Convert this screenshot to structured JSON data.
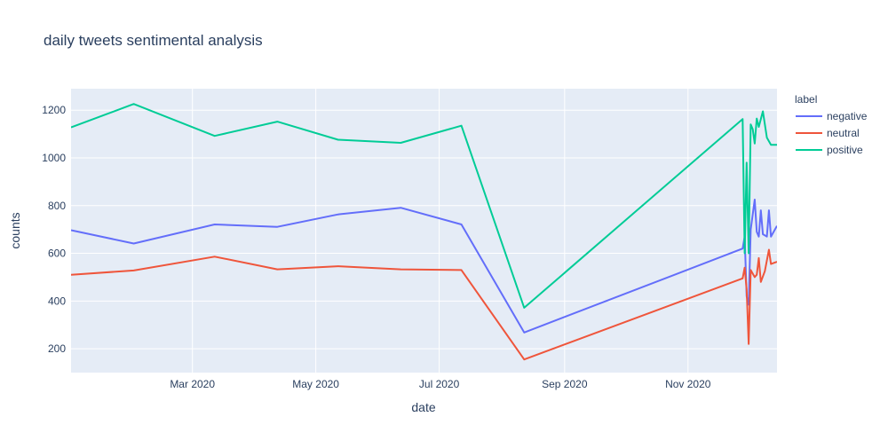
{
  "chart_data": {
    "type": "line",
    "title": "daily tweets sentimental analysis",
    "xlabel": "date",
    "ylabel": "counts",
    "x_axis_type": "date",
    "xlim": [
      "2020-01-01",
      "2020-12-15"
    ],
    "ylim": [
      100,
      1290
    ],
    "x_ticks": [
      {
        "value": "2020-03-01",
        "label": "Mar 2020"
      },
      {
        "value": "2020-05-01",
        "label": "May 2020"
      },
      {
        "value": "2020-07-01",
        "label": "Jul 2020"
      },
      {
        "value": "2020-09-01",
        "label": "Sep 2020"
      },
      {
        "value": "2020-11-01",
        "label": "Nov 2020"
      }
    ],
    "y_ticks": [
      200,
      400,
      600,
      800,
      1000,
      1200
    ],
    "grid": true,
    "legend": {
      "title": "label",
      "placement": "right"
    },
    "series": [
      {
        "name": "negative",
        "color": "#636efa",
        "points": [
          [
            "2020-01-01",
            697
          ],
          [
            "2020-02-01",
            641
          ],
          [
            "2020-03-12",
            721
          ],
          [
            "2020-04-12",
            711
          ],
          [
            "2020-05-12",
            763
          ],
          [
            "2020-06-12",
            791
          ],
          [
            "2020-07-12",
            721
          ],
          [
            "2020-08-12",
            268
          ],
          [
            "2020-11-28",
            620
          ],
          [
            "2020-11-29",
            670
          ],
          [
            "2020-11-30",
            420
          ],
          [
            "2020-12-01",
            385
          ],
          [
            "2020-12-02",
            700
          ],
          [
            "2020-12-04",
            825
          ],
          [
            "2020-12-05",
            690
          ],
          [
            "2020-12-06",
            670
          ],
          [
            "2020-12-07",
            780
          ],
          [
            "2020-12-08",
            680
          ],
          [
            "2020-12-10",
            670
          ],
          [
            "2020-12-11",
            780
          ],
          [
            "2020-12-12",
            670
          ],
          [
            "2020-12-15",
            715
          ]
        ]
      },
      {
        "name": "neutral",
        "color": "#ef553b",
        "points": [
          [
            "2020-01-01",
            510
          ],
          [
            "2020-02-01",
            528
          ],
          [
            "2020-03-12",
            586
          ],
          [
            "2020-04-12",
            533
          ],
          [
            "2020-05-12",
            546
          ],
          [
            "2020-06-12",
            533
          ],
          [
            "2020-07-12",
            530
          ],
          [
            "2020-08-12",
            155
          ],
          [
            "2020-11-28",
            495
          ],
          [
            "2020-11-29",
            540
          ],
          [
            "2020-11-30",
            450
          ],
          [
            "2020-12-01",
            220
          ],
          [
            "2020-12-02",
            530
          ],
          [
            "2020-12-04",
            500
          ],
          [
            "2020-12-05",
            510
          ],
          [
            "2020-12-06",
            580
          ],
          [
            "2020-12-07",
            480
          ],
          [
            "2020-12-09",
            525
          ],
          [
            "2020-12-11",
            615
          ],
          [
            "2020-12-12",
            555
          ],
          [
            "2020-12-15",
            565
          ]
        ]
      },
      {
        "name": "positive",
        "color": "#00cc96",
        "points": [
          [
            "2020-01-01",
            1128
          ],
          [
            "2020-02-01",
            1226
          ],
          [
            "2020-03-12",
            1092
          ],
          [
            "2020-04-12",
            1152
          ],
          [
            "2020-05-12",
            1076
          ],
          [
            "2020-06-12",
            1063
          ],
          [
            "2020-07-12",
            1135
          ],
          [
            "2020-08-12",
            372
          ],
          [
            "2020-11-28",
            1163
          ],
          [
            "2020-11-29",
            600
          ],
          [
            "2020-11-30",
            980
          ],
          [
            "2020-12-01",
            600
          ],
          [
            "2020-12-02",
            1140
          ],
          [
            "2020-12-03",
            1120
          ],
          [
            "2020-12-04",
            1060
          ],
          [
            "2020-12-05",
            1165
          ],
          [
            "2020-12-06",
            1130
          ],
          [
            "2020-12-08",
            1195
          ],
          [
            "2020-12-10",
            1085
          ],
          [
            "2020-12-12",
            1055
          ],
          [
            "2020-12-15",
            1055
          ]
        ]
      }
    ]
  }
}
